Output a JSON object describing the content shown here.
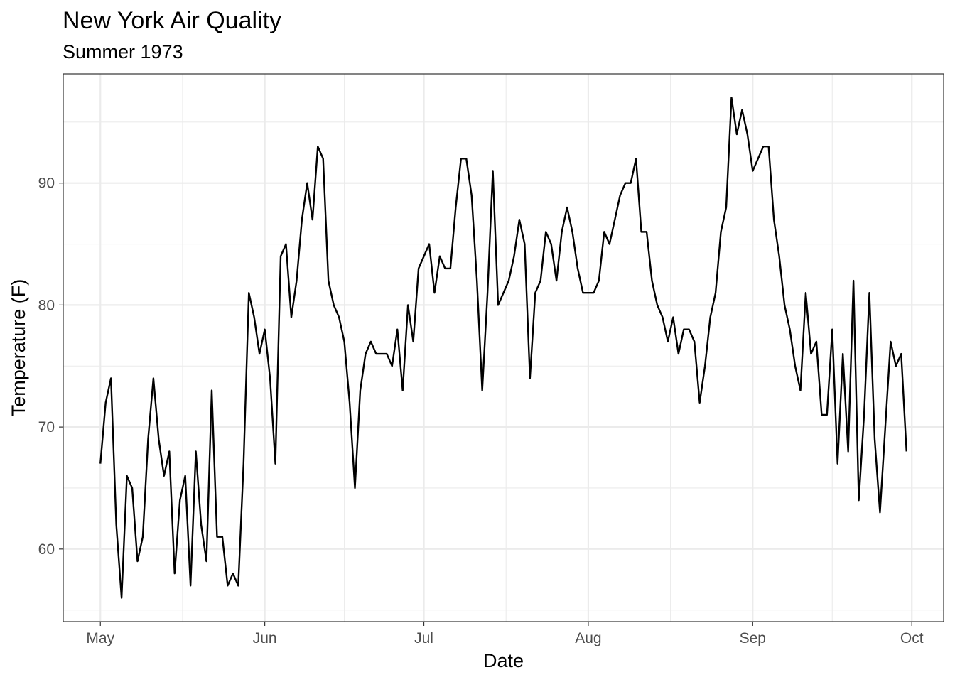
{
  "chart_data": {
    "type": "line",
    "title": "New York Air Quality",
    "subtitle": "Summer 1973",
    "xlabel": "Date",
    "ylabel": "Temperature (F)",
    "x_start": "1973-05-01",
    "x_end": "1973-09-30",
    "xlim": [
      "1973-04-24",
      "1973-10-07"
    ],
    "ylim": [
      54.05,
      98.95
    ],
    "x_ticks": [
      {
        "date": "1973-05-01",
        "label": "May"
      },
      {
        "date": "1973-06-01",
        "label": "Jun"
      },
      {
        "date": "1973-07-01",
        "label": "Jul"
      },
      {
        "date": "1973-08-01",
        "label": "Aug"
      },
      {
        "date": "1973-09-01",
        "label": "Sep"
      },
      {
        "date": "1973-10-01",
        "label": "Oct"
      }
    ],
    "y_ticks": [
      60,
      70,
      80,
      90
    ],
    "grid": true,
    "series": [
      {
        "color": "#000000",
        "values": [
          67,
          72,
          74,
          62,
          56,
          66,
          65,
          59,
          61,
          69,
          74,
          69,
          66,
          68,
          58,
          64,
          66,
          57,
          68,
          62,
          59,
          73,
          61,
          61,
          57,
          58,
          57,
          67,
          81,
          79,
          76,
          78,
          74,
          67,
          84,
          85,
          79,
          82,
          87,
          90,
          87,
          93,
          92,
          82,
          80,
          79,
          77,
          72,
          65,
          73,
          76,
          77,
          76,
          76,
          76,
          75,
          78,
          73,
          80,
          77,
          83,
          84,
          85,
          81,
          84,
          83,
          83,
          88,
          92,
          92,
          89,
          82,
          73,
          81,
          91,
          80,
          81,
          82,
          84,
          87,
          85,
          74,
          81,
          82,
          86,
          85,
          82,
          86,
          88,
          86,
          83,
          81,
          81,
          81,
          82,
          86,
          85,
          87,
          89,
          90,
          90,
          92,
          86,
          86,
          82,
          80,
          79,
          77,
          79,
          76,
          78,
          78,
          77,
          72,
          75,
          79,
          81,
          86,
          88,
          97,
          94,
          96,
          94,
          91,
          92,
          93,
          93,
          87,
          84,
          80,
          78,
          75,
          73,
          81,
          76,
          77,
          71,
          71,
          78,
          67,
          76,
          68,
          82,
          64,
          71,
          81,
          69,
          63,
          70,
          77,
          75,
          76,
          68
        ]
      }
    ]
  }
}
